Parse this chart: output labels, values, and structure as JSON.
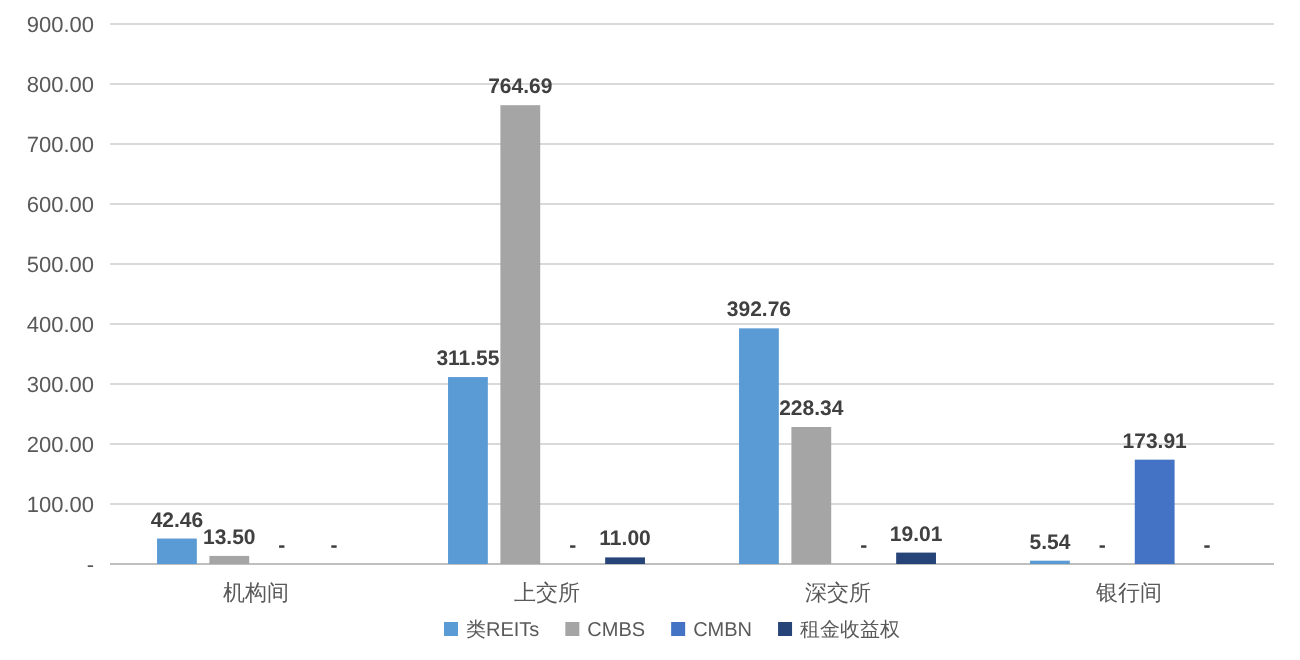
{
  "chart_data": {
    "type": "bar",
    "categories": [
      "机构间",
      "上交所",
      "深交所",
      "银行间"
    ],
    "series": [
      {
        "name": "类REITs",
        "color": "#5b9bd5",
        "values": [
          42.46,
          311.55,
          392.76,
          5.54
        ],
        "value_labels": [
          "42.46",
          "311.55",
          "392.76",
          "5.54"
        ]
      },
      {
        "name": "CMBS",
        "color": "#a5a5a5",
        "values": [
          13.5,
          764.69,
          228.34,
          null
        ],
        "value_labels": [
          "13.50",
          "764.69",
          "228.34",
          "-"
        ]
      },
      {
        "name": "CMBN",
        "color": "#4472c4",
        "values": [
          null,
          null,
          null,
          173.91
        ],
        "value_labels": [
          "-",
          "-",
          "-",
          "173.91"
        ]
      },
      {
        "name": "租金收益权",
        "color": "#264478",
        "values": [
          null,
          11.0,
          19.01,
          null
        ],
        "value_labels": [
          "-",
          "11.00",
          "19.01",
          "-"
        ]
      }
    ],
    "ylim": [
      0,
      900
    ],
    "yticks": [
      {
        "value": 0,
        "label": "-"
      },
      {
        "value": 100,
        "label": "100.00"
      },
      {
        "value": 200,
        "label": "200.00"
      },
      {
        "value": 300,
        "label": "300.00"
      },
      {
        "value": 400,
        "label": "400.00"
      },
      {
        "value": 500,
        "label": "500.00"
      },
      {
        "value": 600,
        "label": "600.00"
      },
      {
        "value": 700,
        "label": "700.00"
      },
      {
        "value": 800,
        "label": "800.00"
      },
      {
        "value": 900,
        "label": "900.00"
      }
    ],
    "grid": "y",
    "legend": "bottom"
  }
}
